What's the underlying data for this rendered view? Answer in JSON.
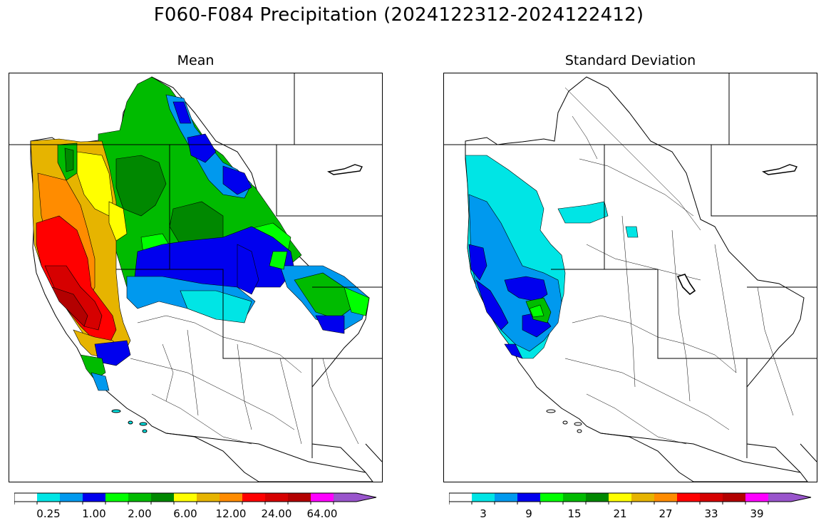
{
  "figure": {
    "title": "F060-F084 Precipitation (2024122312-2024122412)"
  },
  "panels": [
    {
      "title": "Mean",
      "colorbar": {
        "colors": [
          "#ffffff",
          "#00e5e5",
          "#0099ee",
          "#0000ee",
          "#00ff00",
          "#00bb00",
          "#008800",
          "#ffff00",
          "#e6b400",
          "#ff8c00",
          "#ff0000",
          "#d60000",
          "#b30000",
          "#ff00ff",
          "#9955cc"
        ],
        "tick_labels": [
          "0.25",
          "1.00",
          "2.00",
          "6.00",
          "12.00",
          "24.00",
          "64.00"
        ],
        "extend": "max"
      }
    },
    {
      "title": "Standard Deviation",
      "colorbar": {
        "colors": [
          "#ffffff",
          "#00e5e5",
          "#0099ee",
          "#0000ee",
          "#00ff00",
          "#00bb00",
          "#008800",
          "#ffff00",
          "#e6b400",
          "#ff8c00",
          "#ff0000",
          "#d60000",
          "#b30000",
          "#ff00ff",
          "#9955cc"
        ],
        "tick_labels": [
          "3",
          "9",
          "15",
          "21",
          "27",
          "33",
          "39"
        ],
        "extend": "max"
      }
    }
  ]
}
